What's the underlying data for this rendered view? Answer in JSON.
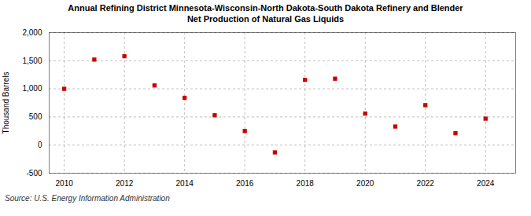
{
  "chart_data": {
    "type": "scatter",
    "title": "Annual Refining District Minnesota-Wisconsin-North Dakota-South Dakota Refinery and Blender",
    "subtitle": "Net Production of Natural Gas Liquids",
    "y_label": "Thousand Barrels",
    "caption": "Source: U.S. Energy Information Administration",
    "x": [
      2010,
      2011,
      2012,
      2013,
      2014,
      2015,
      2016,
      2017,
      2018,
      2019,
      2020,
      2021,
      2022,
      2023,
      2024
    ],
    "values": [
      1000,
      1520,
      1580,
      1060,
      840,
      530,
      250,
      -130,
      1160,
      1180,
      560,
      330,
      710,
      210,
      470
    ],
    "color": "#cc0000",
    "marker": "square",
    "xlim": [
      2009.5,
      2025.0
    ],
    "xticks": [
      2010,
      2012,
      2014,
      2016,
      2018,
      2020,
      2022,
      2024
    ],
    "ylim": [
      -500,
      2000
    ],
    "yticks": [
      -500,
      0,
      500,
      {
        "value": 1000,
        "label": "1,000"
      },
      {
        "value": 1500,
        "label": "1,500"
      },
      {
        "value": 2000,
        "label": "2,000"
      }
    ],
    "grid": true
  }
}
